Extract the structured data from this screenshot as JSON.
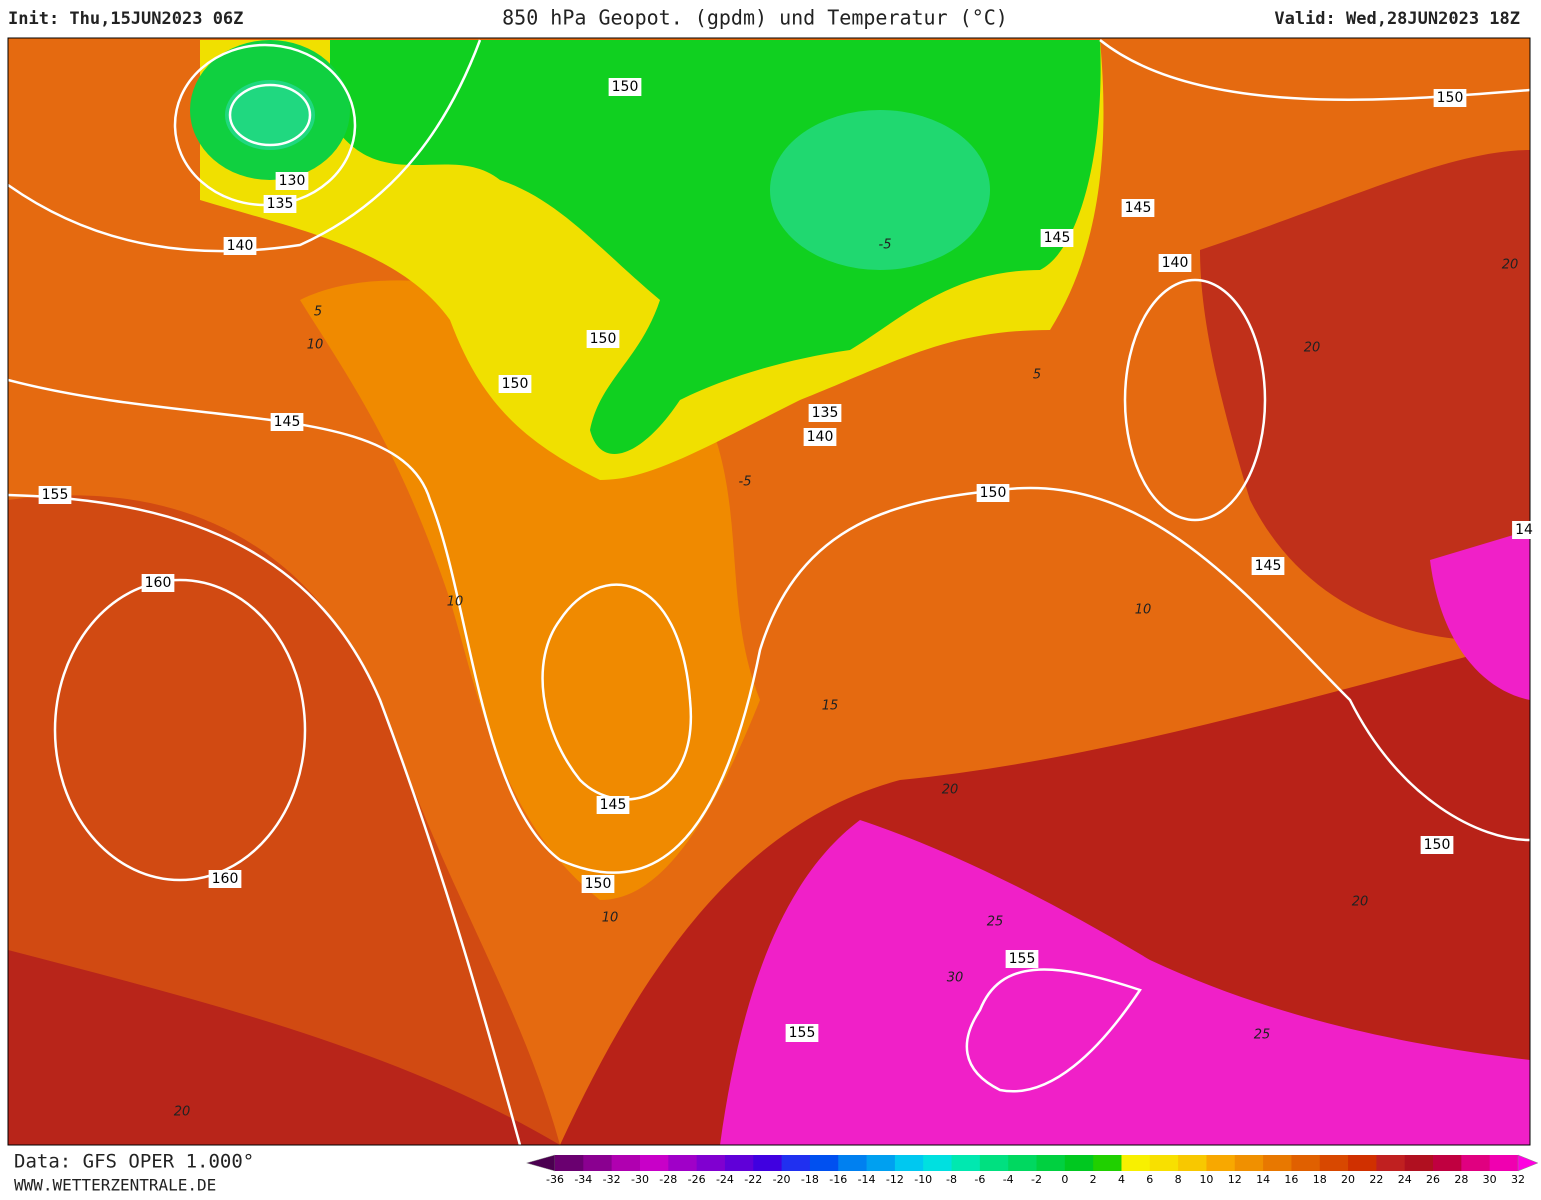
{
  "header": {
    "init": "Init: Thu,15JUN2023 06Z",
    "title": "850 hPa Geopot. (gpdm) und Temperatur (°C)",
    "valid": "Valid: Wed,28JUN2023 18Z"
  },
  "footer": {
    "source": "Data: GFS OPER 1.000°",
    "website": "WWW.WETTERZENTRALE.DE"
  },
  "geopotential_labels": [
    "150",
    "130",
    "135",
    "140",
    "145",
    "155",
    "150",
    "150",
    "135",
    "140",
    "145",
    "145",
    "140",
    "150",
    "150",
    "145",
    "160",
    "145",
    "150",
    "160",
    "150",
    "155",
    "155",
    "14"
  ],
  "temperature_labels": [
    "-5",
    "5",
    "10",
    "10",
    "15",
    "20",
    "25",
    "30",
    "25",
    "20",
    "10",
    "20",
    "20",
    "-5",
    "5",
    "10",
    "20"
  ],
  "colorbar": {
    "labels": [
      "-36",
      "-34",
      "-32",
      "-30",
      "-28",
      "-26",
      "-24",
      "-22",
      "-20",
      "-18",
      "-16",
      "-14",
      "-12",
      "-10",
      "-8",
      "-6",
      "-4",
      "-2",
      "0",
      "2",
      "4",
      "6",
      "8",
      "10",
      "12",
      "14",
      "16",
      "18",
      "20",
      "22",
      "24",
      "26",
      "28",
      "30",
      "32"
    ],
    "colors": [
      "#4b0050",
      "#6a0070",
      "#8a0090",
      "#b000b0",
      "#c800c8",
      "#a000c8",
      "#8000d0",
      "#6000d8",
      "#4000e0",
      "#2030f0",
      "#0050f0",
      "#0080f0",
      "#00a0f0",
      "#00c8f0",
      "#00e0e0",
      "#00e8b0",
      "#00e080",
      "#00d860",
      "#00d040",
      "#00c820",
      "#20d000",
      "#f8f000",
      "#f8e000",
      "#f8c800",
      "#f8a800",
      "#f09000",
      "#e87800",
      "#e06000",
      "#d84800",
      "#d03000",
      "#c02020",
      "#b01020",
      "#c00040",
      "#e00080",
      "#f000b0",
      "#ff00e0"
    ]
  }
}
